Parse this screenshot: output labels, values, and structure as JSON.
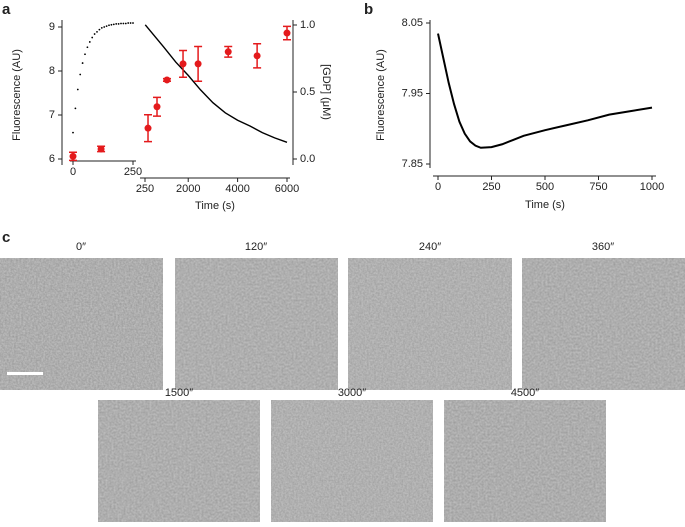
{
  "chart_data": [
    {
      "type": "scatter",
      "panel_label": "a",
      "xlabel": "Time (s)",
      "ylabel": "Fluorescence (AU)",
      "y2label": "[GDP] (μM)",
      "xsegments": [
        {
          "xlim": [
            0,
            250
          ],
          "xticks": [
            0,
            250
          ]
        },
        {
          "xlim": [
            250,
            6000
          ],
          "xticks": [
            250,
            2000,
            4000,
            6000
          ]
        }
      ],
      "ylim": [
        6,
        9
      ],
      "yticks": [
        6,
        7,
        8,
        9
      ],
      "y2lim": [
        0,
        1
      ],
      "y2ticks": [
        {
          "value": 0,
          "label": "0.0"
        },
        0.5,
        {
          "value": 1,
          "label": "1.0"
        }
      ],
      "series": [
        {
          "style": "dots",
          "color": "#000000",
          "x": [
            0,
            10,
            20,
            30,
            40,
            50,
            60,
            70,
            80,
            90,
            100,
            110,
            120,
            130,
            140,
            150,
            160,
            170,
            180,
            190,
            200,
            210,
            220,
            230,
            240,
            250
          ],
          "values": [
            6.6,
            7.15,
            7.58,
            7.92,
            8.18,
            8.38,
            8.54,
            8.66,
            8.76,
            8.84,
            8.89,
            8.94,
            8.98,
            9.0,
            9.02,
            9.04,
            9.05,
            9.06,
            9.07,
            9.07,
            9.08,
            9.08,
            9.08,
            9.09,
            9.09,
            9.09
          ]
        },
        {
          "style": "line",
          "color": "#000000",
          "x": [
            260,
            1000,
            1500,
            2000,
            2500,
            3000,
            3500,
            4000,
            4500,
            5000,
            5500,
            6000
          ],
          "values": [
            9.05,
            8.55,
            8.2,
            7.9,
            7.57,
            7.28,
            7.05,
            6.88,
            6.75,
            6.6,
            6.48,
            6.38
          ]
        },
        {
          "style": "points",
          "color": "#e41a1c",
          "axis": "y2",
          "x": [
            0,
            117,
            372,
            736,
            1140,
            1790,
            2400,
            3620,
            4790,
            6000
          ],
          "values": [
            0.02,
            0.075,
            0.23,
            0.39,
            0.59,
            0.71,
            0.71,
            0.8,
            0.77,
            0.94
          ],
          "errors": [
            0.03,
            0.02,
            0.1,
            0.07,
            0.01,
            0.1,
            0.13,
            0.04,
            0.09,
            0.05
          ]
        }
      ]
    },
    {
      "type": "line",
      "panel_label": "b",
      "xlabel": "Time (s)",
      "ylabel": "Fluorescence (AU)",
      "xlim": [
        0,
        1000
      ],
      "xticks": [
        0,
        250,
        500,
        750,
        1000
      ],
      "ylim": [
        7.85,
        8.05
      ],
      "yticks": [
        7.85,
        7.95,
        8.05
      ],
      "series": [
        {
          "style": "line",
          "color": "#000000",
          "x": [
            0,
            25,
            50,
            75,
            100,
            125,
            150,
            175,
            200,
            250,
            300,
            350,
            400,
            500,
            600,
            700,
            800,
            900,
            1000
          ],
          "values": [
            8.035,
            8.0,
            7.965,
            7.935,
            7.91,
            7.893,
            7.882,
            7.876,
            7.873,
            7.874,
            7.878,
            7.884,
            7.89,
            7.898,
            7.905,
            7.912,
            7.92,
            7.925,
            7.93
          ]
        }
      ]
    }
  ],
  "micrographs": {
    "panel_label": "c",
    "labels": [
      "0″",
      "120″",
      "240″",
      "360″",
      "1500″",
      "3000″",
      "4500″"
    ]
  }
}
